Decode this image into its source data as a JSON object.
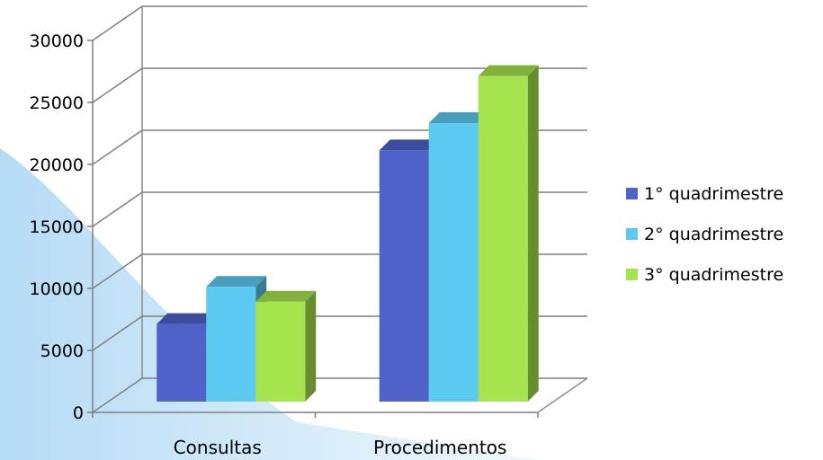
{
  "chart_data": {
    "type": "bar",
    "categories": [
      "Consultas",
      "Procedimentos"
    ],
    "series": [
      {
        "name": "1° quadrimestre",
        "values": [
          8000,
          22000
        ],
        "color": "#4f62c9"
      },
      {
        "name": "2° quadrimestre",
        "values": [
          11000,
          24200
        ],
        "color": "#5ccaf0"
      },
      {
        "name": "3° quadrimestre",
        "values": [
          9800,
          28000
        ],
        "color": "#a6e44f"
      }
    ],
    "yticks": [
      0,
      5000,
      10000,
      15000,
      20000,
      25000,
      30000
    ],
    "ylim": [
      0,
      30000
    ],
    "grid": true,
    "legend": "right",
    "style": "3d-clustered-column"
  }
}
